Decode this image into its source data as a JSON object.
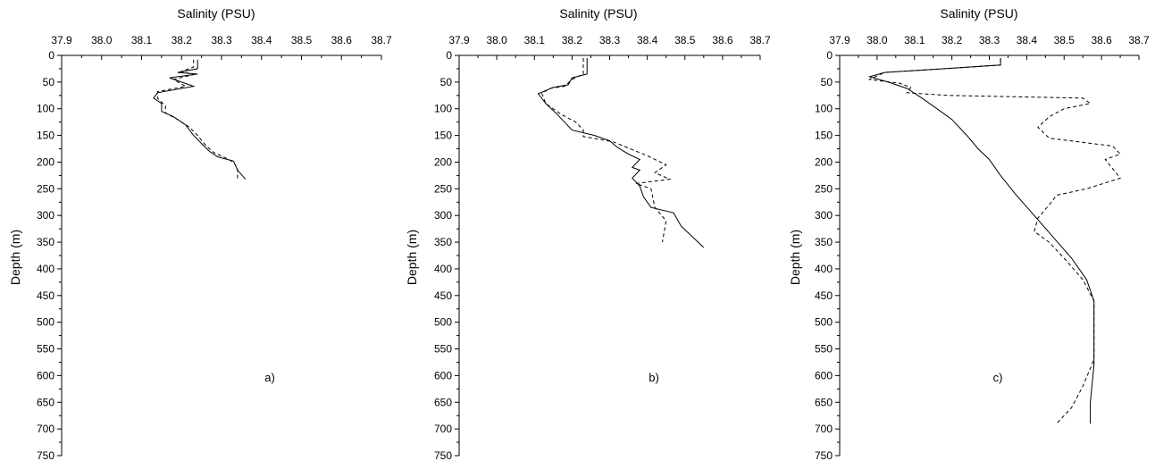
{
  "chart_data": [
    {
      "type": "line",
      "panel_label": "a)",
      "xlabel": "Salinity (PSU)",
      "ylabel": "Depth (m)",
      "xlim": [
        37.9,
        38.7
      ],
      "ylim": [
        0,
        750
      ],
      "x_ticks": [
        "37.9",
        "38.0",
        "38.1",
        "38.2",
        "38.3",
        "38.4",
        "38.5",
        "38.6",
        "38.7"
      ],
      "y_ticks": [
        "0",
        "50",
        "100",
        "150",
        "200",
        "250",
        "300",
        "350",
        "400",
        "450",
        "500",
        "550",
        "600",
        "650",
        "700",
        "750"
      ],
      "x_axis_position": "top",
      "y_inverted": true,
      "grid": false,
      "series": [
        {
          "style": "solid",
          "points": [
            [
              38.24,
              8
            ],
            [
              38.24,
              25
            ],
            [
              38.19,
              32
            ],
            [
              38.24,
              35
            ],
            [
              38.17,
              42
            ],
            [
              38.23,
              58
            ],
            [
              38.14,
              70
            ],
            [
              38.13,
              80
            ],
            [
              38.15,
              90
            ],
            [
              38.15,
              105
            ],
            [
              38.18,
              115
            ],
            [
              38.21,
              130
            ],
            [
              38.23,
              150
            ],
            [
              38.25,
              165
            ],
            [
              38.27,
              180
            ],
            [
              38.29,
              190
            ],
            [
              38.33,
              198
            ],
            [
              38.34,
              215
            ],
            [
              38.36,
              232
            ]
          ]
        },
        {
          "style": "dashed",
          "points": [
            [
              38.23,
              8
            ],
            [
              38.23,
              22
            ],
            [
              38.2,
              30
            ],
            [
              38.23,
              36
            ],
            [
              38.18,
              45
            ],
            [
              38.21,
              58
            ],
            [
              38.14,
              68
            ],
            [
              38.14,
              80
            ],
            [
              38.16,
              95
            ],
            [
              38.16,
              108
            ],
            [
              38.19,
              120
            ],
            [
              38.22,
              135
            ],
            [
              38.24,
              150
            ],
            [
              38.26,
              168
            ],
            [
              38.28,
              182
            ],
            [
              38.31,
              192
            ],
            [
              38.33,
              200
            ],
            [
              38.34,
              212
            ],
            [
              38.34,
              235
            ]
          ]
        }
      ]
    },
    {
      "type": "line",
      "panel_label": "b)",
      "xlabel": "Salinity (PSU)",
      "ylabel": "Depth (m)",
      "xlim": [
        37.9,
        38.7
      ],
      "ylim": [
        0,
        750
      ],
      "x_ticks": [
        "37.9",
        "38.0",
        "38.1",
        "38.2",
        "38.3",
        "38.4",
        "38.5",
        "38.6",
        "38.7"
      ],
      "y_ticks": [
        "0",
        "50",
        "100",
        "150",
        "200",
        "250",
        "300",
        "350",
        "400",
        "450",
        "500",
        "550",
        "600",
        "650",
        "700",
        "750"
      ],
      "x_axis_position": "top",
      "y_inverted": true,
      "grid": false,
      "series": [
        {
          "style": "solid",
          "points": [
            [
              38.24,
              5
            ],
            [
              38.24,
              35
            ],
            [
              38.2,
              42
            ],
            [
              38.19,
              55
            ],
            [
              38.15,
              60
            ],
            [
              38.11,
              72
            ],
            [
              38.13,
              90
            ],
            [
              38.16,
              110
            ],
            [
              38.2,
              140
            ],
            [
              38.26,
              150
            ],
            [
              38.3,
              160
            ],
            [
              38.32,
              172
            ],
            [
              38.35,
              185
            ],
            [
              38.38,
              195
            ],
            [
              38.36,
              210
            ],
            [
              38.38,
              215
            ],
            [
              38.36,
              230
            ],
            [
              38.38,
              245
            ],
            [
              38.39,
              265
            ],
            [
              38.41,
              285
            ],
            [
              38.47,
              295
            ],
            [
              38.49,
              320
            ],
            [
              38.52,
              340
            ],
            [
              38.55,
              360
            ]
          ]
        },
        {
          "style": "dashed",
          "points": [
            [
              38.23,
              5
            ],
            [
              38.23,
              35
            ],
            [
              38.2,
              45
            ],
            [
              38.18,
              58
            ],
            [
              38.14,
              62
            ],
            [
              38.12,
              72
            ],
            [
              38.13,
              90
            ],
            [
              38.17,
              110
            ],
            [
              38.21,
              125
            ],
            [
              38.23,
              140
            ],
            [
              38.23,
              152
            ],
            [
              38.31,
              162
            ],
            [
              38.4,
              188
            ],
            [
              38.45,
              205
            ],
            [
              38.42,
              220
            ],
            [
              38.46,
              232
            ],
            [
              38.37,
              240
            ],
            [
              38.41,
              250
            ],
            [
              38.42,
              285
            ],
            [
              38.45,
              310
            ],
            [
              38.44,
              350
            ]
          ]
        }
      ]
    },
    {
      "type": "line",
      "panel_label": "c)",
      "xlabel": "Salinity (PSU)",
      "ylabel": "Depth (m)",
      "xlim": [
        37.9,
        38.7
      ],
      "ylim": [
        0,
        750
      ],
      "x_ticks": [
        "37.9",
        "38.0",
        "38.1",
        "38.2",
        "38.3",
        "38.4",
        "38.5",
        "38.6",
        "38.7"
      ],
      "y_ticks": [
        "0",
        "50",
        "100",
        "150",
        "200",
        "250",
        "300",
        "350",
        "400",
        "450",
        "500",
        "550",
        "600",
        "650",
        "700",
        "750"
      ],
      "x_axis_position": "top",
      "y_inverted": true,
      "grid": false,
      "series": [
        {
          "style": "solid",
          "points": [
            [
              38.33,
              5
            ],
            [
              38.33,
              18
            ],
            [
              38.18,
              25
            ],
            [
              38.02,
              32
            ],
            [
              37.98,
              40
            ],
            [
              38.03,
              50
            ],
            [
              38.08,
              62
            ],
            [
              38.12,
              80
            ],
            [
              38.16,
              100
            ],
            [
              38.2,
              120
            ],
            [
              38.24,
              150
            ],
            [
              38.27,
              175
            ],
            [
              38.3,
              195
            ],
            [
              38.33,
              225
            ],
            [
              38.37,
              260
            ],
            [
              38.42,
              300
            ],
            [
              38.47,
              340
            ],
            [
              38.52,
              380
            ],
            [
              38.56,
              420
            ],
            [
              38.58,
              460
            ],
            [
              38.58,
              520
            ],
            [
              38.58,
              580
            ],
            [
              38.57,
              650
            ],
            [
              38.57,
              690
            ]
          ]
        },
        {
          "style": "dashed",
          "points": [
            [
              38.33,
              5
            ],
            [
              38.33,
              18
            ],
            [
              38.18,
              25
            ],
            [
              38.02,
              32
            ],
            [
              37.98,
              45
            ],
            [
              38.06,
              52
            ],
            [
              38.09,
              60
            ],
            [
              38.08,
              70
            ],
            [
              38.19,
              75
            ],
            [
              38.55,
              80
            ],
            [
              38.57,
              90
            ],
            [
              38.5,
              100
            ],
            [
              38.46,
              115
            ],
            [
              38.43,
              135
            ],
            [
              38.46,
              155
            ],
            [
              38.63,
              170
            ],
            [
              38.65,
              185
            ],
            [
              38.61,
              195
            ],
            [
              38.65,
              230
            ],
            [
              38.56,
              250
            ],
            [
              38.48,
              262
            ],
            [
              38.46,
              280
            ],
            [
              38.43,
              305
            ],
            [
              38.42,
              330
            ],
            [
              38.46,
              350
            ],
            [
              38.5,
              380
            ],
            [
              38.55,
              420
            ],
            [
              38.58,
              460
            ],
            [
              38.58,
              540
            ],
            [
              38.58,
              570
            ],
            [
              38.55,
              620
            ],
            [
              38.52,
              660
            ],
            [
              38.48,
              690
            ]
          ]
        }
      ]
    }
  ]
}
